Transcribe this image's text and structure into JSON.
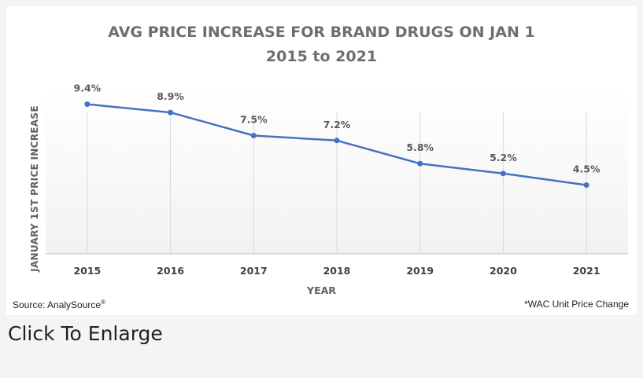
{
  "chart_data": {
    "type": "line",
    "title": "AVG PRICE INCREASE FOR BRAND DRUGS ON JAN 1",
    "subtitle": "2015 to 2021",
    "xlabel": "YEAR",
    "ylabel": "JANUARY 1ST PRICE INCREASE",
    "categories": [
      "2015",
      "2016",
      "2017",
      "2018",
      "2019",
      "2020",
      "2021"
    ],
    "values": [
      9.4,
      8.9,
      7.5,
      7.2,
      5.8,
      5.2,
      4.5
    ],
    "data_labels": [
      "9.4%",
      "8.9%",
      "7.5%",
      "7.2%",
      "5.8%",
      "5.2%",
      "4.5%"
    ],
    "ylim": [
      0,
      10
    ],
    "grid": "vertical",
    "line_color": "#4472c4"
  },
  "source": {
    "text": "Source: AnalySource",
    "mark": "®"
  },
  "footnote": "*WAC Unit Price Change",
  "enlarge_link": "Click To Enlarge"
}
